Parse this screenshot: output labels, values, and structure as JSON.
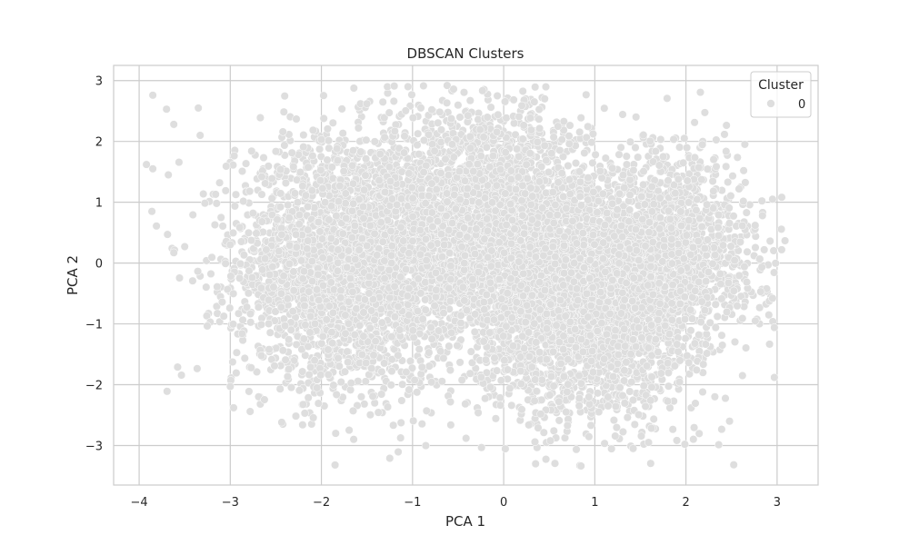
{
  "chart_data": {
    "type": "scatter",
    "title": "DBSCAN Clusters",
    "xlabel": "PCA 1",
    "ylabel": "PCA 2",
    "xlim": [
      -4.28,
      3.45
    ],
    "ylim": [
      -3.65,
      3.25
    ],
    "xticks": [
      -4,
      -3,
      -2,
      -1,
      0,
      1,
      2,
      3
    ],
    "yticks": [
      -3,
      -2,
      -1,
      0,
      1,
      2,
      3
    ],
    "xtick_labels": [
      "−4",
      "−3",
      "−2",
      "−1",
      "0",
      "1",
      "2",
      "3"
    ],
    "ytick_labels": [
      "−3",
      "−2",
      "−1",
      "0",
      "1",
      "2",
      "3"
    ],
    "grid": true,
    "legend": {
      "title": "Cluster",
      "placement": "top-right",
      "entries": [
        "0"
      ]
    },
    "series": [
      {
        "name": "0",
        "color": "#dedede",
        "blobs": [
          {
            "center": [
              -1.7,
              0.0
            ],
            "std": [
              0.62,
              1.0
            ],
            "count": 3000
          },
          {
            "center": [
              -0.2,
              0.7
            ],
            "std": [
              0.55,
              0.95
            ],
            "count": 2600
          },
          {
            "center": [
              0.9,
              -0.6
            ],
            "std": [
              0.6,
              0.95
            ],
            "count": 3000
          },
          {
            "center": [
              1.8,
              0.2
            ],
            "std": [
              0.45,
              0.8
            ],
            "count": 1400
          }
        ],
        "x_range": [
          -3.9,
          3.1
        ],
        "y_range": [
          -3.35,
          2.95
        ],
        "points": [
          [
            -3.85,
            2.76
          ],
          [
            -3.92,
            1.62
          ],
          [
            -3.85,
            1.55
          ],
          [
            -3.86,
            0.85
          ],
          [
            -3.81,
            0.61
          ],
          [
            -3.7,
            2.53
          ],
          [
            -3.62,
            2.28
          ],
          [
            -3.68,
            1.45
          ],
          [
            -3.62,
            0.17
          ],
          [
            -3.5,
            0.27
          ],
          [
            -3.35,
            2.55
          ],
          [
            -3.33,
            2.1
          ],
          [
            -3.0,
            -2.03
          ],
          [
            -2.0,
            2.03
          ],
          [
            -1.85,
            -3.32
          ],
          [
            -1.5,
            2.62
          ],
          [
            -1.25,
            -3.21
          ],
          [
            -1.05,
            2.9
          ],
          [
            -0.62,
            2.92
          ],
          [
            -0.55,
            2.86
          ],
          [
            0.35,
            -3.3
          ],
          [
            0.45,
            2.7
          ],
          [
            1.42,
            -3.05
          ],
          [
            1.75,
            1.75
          ],
          [
            2.4,
            -1.35
          ],
          [
            2.62,
            -1.85
          ],
          [
            2.82,
            -0.47
          ],
          [
            2.95,
            1.05
          ],
          [
            3.05,
            0.22
          ],
          [
            2.97,
            -1.06
          ],
          [
            2.97,
            -1.88
          ],
          [
            2.95,
            -0.58
          ],
          [
            2.84,
            0.78
          ],
          [
            2.76,
            0.62
          ],
          [
            2.62,
            -0.91
          ]
        ]
      }
    ]
  }
}
